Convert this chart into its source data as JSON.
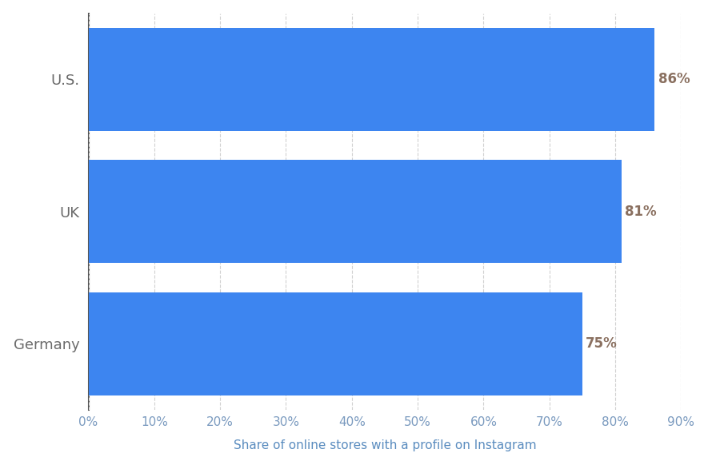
{
  "categories": [
    "Germany",
    "UK",
    "U.S."
  ],
  "values": [
    75,
    81,
    86
  ],
  "bar_color": "#3d85f0",
  "label_color": "#8a7060",
  "ytick_color": "#6a6a6a",
  "xtick_color": "#7a9abf",
  "xlabel": "Share of online stores with a profile on Instagram",
  "xlabel_color": "#5a8cbf",
  "xlim": [
    0,
    90
  ],
  "xticks": [
    0,
    10,
    20,
    30,
    40,
    50,
    60,
    70,
    80,
    90
  ],
  "bar_height": 0.78,
  "background_color": "#ffffff",
  "band_color_bar": "#ffffff",
  "band_color_gap": "#f5f5f7",
  "right_panel_color": "#f0f0f3",
  "grid_color": "#d0d0d0",
  "spine_color": "#555555",
  "value_fontsize": 12,
  "ytick_fontsize": 13,
  "xtick_fontsize": 11,
  "xlabel_fontsize": 11
}
